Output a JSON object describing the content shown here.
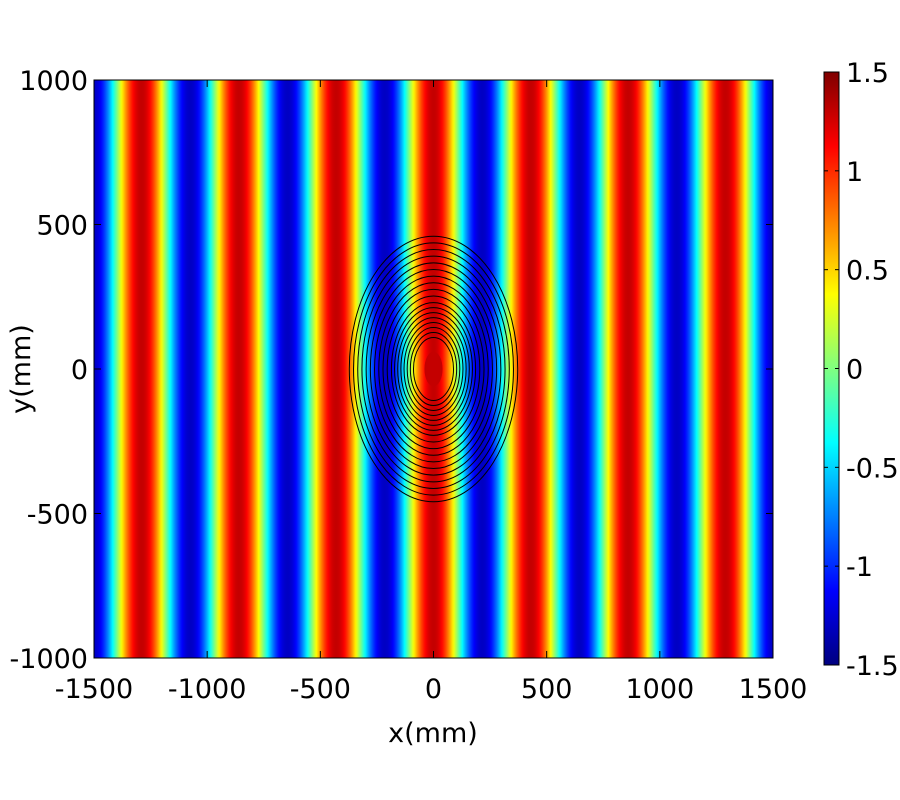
{
  "chart_data": {
    "type": "heatmap",
    "title": "",
    "xlabel": "x(mm)",
    "ylabel": "y(mm)",
    "xlim": [
      -1500,
      1500
    ],
    "ylim": [
      -1000,
      1000
    ],
    "x_ticks": [
      -1500,
      -1000,
      -500,
      0,
      500,
      1000,
      1500
    ],
    "x_tick_labels": [
      "-1500",
      "-1000",
      "-500",
      "0",
      "500",
      "1000",
      "1500"
    ],
    "y_ticks": [
      -1000,
      -500,
      0,
      500,
      1000
    ],
    "y_tick_labels": [
      "-1000",
      "-500",
      "0",
      "500",
      "1000"
    ],
    "colormap": "jet",
    "clim": [
      -1.5,
      1.5
    ],
    "colorbar_ticks": [
      -1.5,
      -1,
      -0.5,
      0,
      0.5,
      1,
      1.5
    ],
    "colorbar_tick_labels": [
      "-1.5",
      "-1",
      "-0.5",
      "0",
      "0.5",
      "1",
      "1.5"
    ],
    "field": {
      "description_values": "vertical plane-wave fringes along x",
      "wavelength_mm": 430,
      "amplitude": 1.3,
      "peak_at_x_mm": 0
    },
    "contours": {
      "center": [
        0,
        0
      ],
      "count": 18,
      "outer_radii_mm": [
        400,
        380,
        360,
        340,
        320,
        300,
        280,
        260,
        240,
        220,
        200,
        185,
        170,
        155,
        140,
        125,
        110,
        95
      ],
      "aspect_y_over_x": 1.55,
      "color": "#000000"
    },
    "grid": false
  }
}
